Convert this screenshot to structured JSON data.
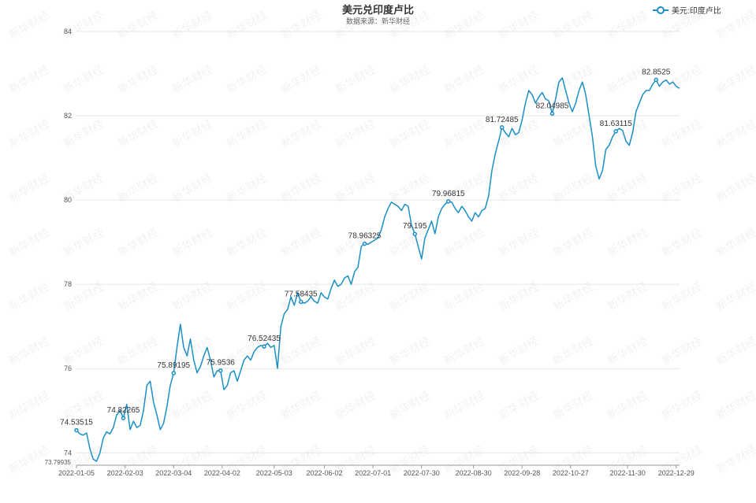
{
  "chart_data": {
    "type": "line",
    "title": "美元兑印度卢比",
    "subtitle": "数据来源：新华财经",
    "watermark": "新华财经",
    "legend": {
      "entries": [
        "美元:印度卢比"
      ],
      "position": "top-right"
    },
    "series": [
      {
        "name": "美元:印度卢比",
        "color": "#1b8fc7",
        "points": [
          [
            "2022-01-05",
            74.53515
          ],
          [
            "2022-01-07",
            74.45
          ],
          [
            "2022-01-09",
            74.42
          ],
          [
            "2022-01-11",
            74.47
          ],
          [
            "2022-01-13",
            74.1
          ],
          [
            "2022-01-15",
            73.85
          ],
          [
            "2022-01-17",
            73.8
          ],
          [
            "2022-01-19",
            74.0
          ],
          [
            "2022-01-21",
            74.35
          ],
          [
            "2022-01-23",
            74.5
          ],
          [
            "2022-01-25",
            74.45
          ],
          [
            "2022-01-27",
            74.6
          ],
          [
            "2022-01-29",
            74.9
          ],
          [
            "2022-01-31",
            75.0
          ],
          [
            "2022-02-02",
            74.82265
          ],
          [
            "2022-02-04",
            75.15
          ],
          [
            "2022-02-06",
            74.55
          ],
          [
            "2022-02-08",
            74.75
          ],
          [
            "2022-02-10",
            74.6
          ],
          [
            "2022-02-12",
            74.65
          ],
          [
            "2022-02-14",
            75.0
          ],
          [
            "2022-02-16",
            75.6
          ],
          [
            "2022-02-18",
            75.7
          ],
          [
            "2022-02-20",
            75.2
          ],
          [
            "2022-02-22",
            74.9
          ],
          [
            "2022-02-24",
            74.55
          ],
          [
            "2022-02-26",
            74.7
          ],
          [
            "2022-02-28",
            75.1
          ],
          [
            "2022-03-02",
            75.6
          ],
          [
            "2022-03-04",
            75.89195
          ],
          [
            "2022-03-06",
            76.5
          ],
          [
            "2022-03-08",
            77.05
          ],
          [
            "2022-03-10",
            76.5
          ],
          [
            "2022-03-12",
            76.3
          ],
          [
            "2022-03-14",
            76.7
          ],
          [
            "2022-03-16",
            76.2
          ],
          [
            "2022-03-18",
            75.9
          ],
          [
            "2022-03-20",
            76.05
          ],
          [
            "2022-03-22",
            76.3
          ],
          [
            "2022-03-24",
            76.5
          ],
          [
            "2022-03-26",
            76.2
          ],
          [
            "2022-03-28",
            75.8
          ],
          [
            "2022-03-30",
            75.95
          ],
          [
            "2022-04-01",
            75.9536
          ],
          [
            "2022-04-03",
            75.5
          ],
          [
            "2022-04-05",
            75.6
          ],
          [
            "2022-04-07",
            75.9
          ],
          [
            "2022-04-09",
            75.95
          ],
          [
            "2022-04-11",
            75.7
          ],
          [
            "2022-04-13",
            75.95
          ],
          [
            "2022-04-15",
            76.2
          ],
          [
            "2022-04-17",
            76.3
          ],
          [
            "2022-04-19",
            76.2
          ],
          [
            "2022-04-21",
            76.4
          ],
          [
            "2022-04-23",
            76.5
          ],
          [
            "2022-04-25",
            76.55
          ],
          [
            "2022-04-27",
            76.52435
          ],
          [
            "2022-04-29",
            76.6
          ],
          [
            "2022-05-01",
            76.5
          ],
          [
            "2022-05-03",
            76.55
          ],
          [
            "2022-05-05",
            76.0
          ],
          [
            "2022-05-07",
            77.0
          ],
          [
            "2022-05-09",
            77.3
          ],
          [
            "2022-05-11",
            77.4
          ],
          [
            "2022-05-13",
            77.7
          ],
          [
            "2022-05-15",
            77.5
          ],
          [
            "2022-05-17",
            77.8
          ],
          [
            "2022-05-19",
            77.58435
          ],
          [
            "2022-05-21",
            77.55
          ],
          [
            "2022-05-23",
            77.6
          ],
          [
            "2022-05-25",
            77.7
          ],
          [
            "2022-05-27",
            77.6
          ],
          [
            "2022-05-29",
            77.55
          ],
          [
            "2022-05-31",
            77.8
          ],
          [
            "2022-06-02",
            77.7
          ],
          [
            "2022-06-04",
            77.65
          ],
          [
            "2022-06-06",
            77.9
          ],
          [
            "2022-06-08",
            78.1
          ],
          [
            "2022-06-10",
            77.95
          ],
          [
            "2022-06-12",
            78.0
          ],
          [
            "2022-06-14",
            78.15
          ],
          [
            "2022-06-16",
            78.2
          ],
          [
            "2022-06-18",
            78.0
          ],
          [
            "2022-06-20",
            78.3
          ],
          [
            "2022-06-22",
            78.4
          ],
          [
            "2022-06-24",
            78.9
          ],
          [
            "2022-06-26",
            78.96325
          ],
          [
            "2022-06-28",
            78.95
          ],
          [
            "2022-06-30",
            79.0
          ],
          [
            "2022-07-02",
            79.05
          ],
          [
            "2022-07-04",
            79.1
          ],
          [
            "2022-07-06",
            79.3
          ],
          [
            "2022-07-08",
            79.6
          ],
          [
            "2022-07-10",
            79.8
          ],
          [
            "2022-07-12",
            79.95
          ],
          [
            "2022-07-14",
            79.9
          ],
          [
            "2022-07-16",
            79.85
          ],
          [
            "2022-07-18",
            79.75
          ],
          [
            "2022-07-20",
            79.9
          ],
          [
            "2022-07-22",
            79.85
          ],
          [
            "2022-07-24",
            79.4
          ],
          [
            "2022-07-26",
            79.195
          ],
          [
            "2022-07-28",
            78.9
          ],
          [
            "2022-07-30",
            78.6
          ],
          [
            "2022-08-01",
            79.1
          ],
          [
            "2022-08-03",
            79.3
          ],
          [
            "2022-08-05",
            79.5
          ],
          [
            "2022-08-07",
            79.2
          ],
          [
            "2022-08-09",
            79.6
          ],
          [
            "2022-08-11",
            79.8
          ],
          [
            "2022-08-13",
            79.9
          ],
          [
            "2022-08-15",
            79.96815
          ],
          [
            "2022-08-17",
            79.95
          ],
          [
            "2022-08-19",
            79.8
          ],
          [
            "2022-08-21",
            79.7
          ],
          [
            "2022-08-23",
            79.85
          ],
          [
            "2022-08-25",
            79.75
          ],
          [
            "2022-08-27",
            79.6
          ],
          [
            "2022-08-29",
            79.5
          ],
          [
            "2022-08-31",
            79.7
          ],
          [
            "2022-09-02",
            79.6
          ],
          [
            "2022-09-04",
            79.75
          ],
          [
            "2022-09-06",
            79.8
          ],
          [
            "2022-09-08",
            80.1
          ],
          [
            "2022-09-10",
            80.7
          ],
          [
            "2022-09-12",
            81.1
          ],
          [
            "2022-09-14",
            81.4
          ],
          [
            "2022-09-16",
            81.72485
          ],
          [
            "2022-09-18",
            81.6
          ],
          [
            "2022-09-20",
            81.5
          ],
          [
            "2022-09-22",
            81.7
          ],
          [
            "2022-09-24",
            81.55
          ],
          [
            "2022-09-26",
            81.6
          ],
          [
            "2022-09-28",
            81.9
          ],
          [
            "2022-09-30",
            82.3
          ],
          [
            "2022-10-02",
            82.6
          ],
          [
            "2022-10-04",
            82.5
          ],
          [
            "2022-10-06",
            82.3
          ],
          [
            "2022-10-08",
            82.45
          ],
          [
            "2022-10-10",
            82.55
          ],
          [
            "2022-10-12",
            82.4
          ],
          [
            "2022-10-14",
            82.35
          ],
          [
            "2022-10-16",
            82.04985
          ],
          [
            "2022-10-18",
            82.4
          ],
          [
            "2022-10-20",
            82.8
          ],
          [
            "2022-10-22",
            82.9
          ],
          [
            "2022-10-24",
            82.6
          ],
          [
            "2022-10-26",
            82.3
          ],
          [
            "2022-10-28",
            82.1
          ],
          [
            "2022-10-30",
            82.3
          ],
          [
            "2022-11-01",
            82.6
          ],
          [
            "2022-11-03",
            82.8
          ],
          [
            "2022-11-05",
            82.5
          ],
          [
            "2022-11-07",
            82.0
          ],
          [
            "2022-11-09",
            81.5
          ],
          [
            "2022-11-11",
            80.8
          ],
          [
            "2022-11-13",
            80.5
          ],
          [
            "2022-11-15",
            80.7
          ],
          [
            "2022-11-17",
            81.2
          ],
          [
            "2022-11-19",
            81.3
          ],
          [
            "2022-11-21",
            81.5
          ],
          [
            "2022-11-23",
            81.63115
          ],
          [
            "2022-11-25",
            81.7
          ],
          [
            "2022-11-27",
            81.65
          ],
          [
            "2022-11-29",
            81.4
          ],
          [
            "2022-12-01",
            81.3
          ],
          [
            "2022-12-03",
            81.6
          ],
          [
            "2022-12-05",
            82.1
          ],
          [
            "2022-12-07",
            82.3
          ],
          [
            "2022-12-09",
            82.5
          ],
          [
            "2022-12-11",
            82.6
          ],
          [
            "2022-12-13",
            82.6
          ],
          [
            "2022-12-15",
            82.75
          ],
          [
            "2022-12-17",
            82.8525
          ],
          [
            "2022-12-19",
            82.7
          ],
          [
            "2022-12-21",
            82.8
          ],
          [
            "2022-12-23",
            82.85
          ],
          [
            "2022-12-25",
            82.75
          ],
          [
            "2022-12-27",
            82.8
          ],
          [
            "2022-12-29",
            82.7
          ],
          [
            "2022-12-31",
            82.65
          ]
        ]
      }
    ],
    "annotations": [
      {
        "x": "2022-01-05",
        "y": 74.53515,
        "label": "74.53515"
      },
      {
        "x": "2022-02-02",
        "y": 74.82265,
        "label": "74.82265"
      },
      {
        "x": "2022-03-04",
        "y": 75.89195,
        "label": "75.89195"
      },
      {
        "x": "2022-04-01",
        "y": 75.9536,
        "label": "75.9536"
      },
      {
        "x": "2022-04-27",
        "y": 76.52435,
        "label": "76.52435"
      },
      {
        "x": "2022-05-19",
        "y": 77.58435,
        "label": "77.58435"
      },
      {
        "x": "2022-06-26",
        "y": 78.96325,
        "label": "78.96325"
      },
      {
        "x": "2022-07-26",
        "y": 79.195,
        "label": "79.195"
      },
      {
        "x": "2022-08-15",
        "y": 79.96815,
        "label": "79.96815"
      },
      {
        "x": "2022-09-16",
        "y": 81.72485,
        "label": "81.72485"
      },
      {
        "x": "2022-10-16",
        "y": 82.04985,
        "label": "82.04985"
      },
      {
        "x": "2022-11-23",
        "y": 81.63115,
        "label": "81.63115"
      },
      {
        "x": "2022-12-17",
        "y": 82.8525,
        "label": "82.8525"
      }
    ],
    "min_marker": {
      "x": "2022-01-17",
      "y": 73.79935,
      "label": "73.79935"
    },
    "x_ticks": [
      "2022-01-05",
      "2022-02-03",
      "2022-03-04",
      "2022-04-02",
      "2022-05-03",
      "2022-06-02",
      "2022-07-01",
      "2022-07-30",
      "2022-08-30",
      "2022-09-28",
      "2022-10-27",
      "2022-11-30",
      "2022-12-29"
    ],
    "y_ticks": [
      74,
      76,
      78,
      80,
      82,
      84
    ],
    "xlim": [
      "2022-01-05",
      "2022-12-31"
    ],
    "ylim": [
      73.79935,
      84
    ],
    "grid": true
  }
}
